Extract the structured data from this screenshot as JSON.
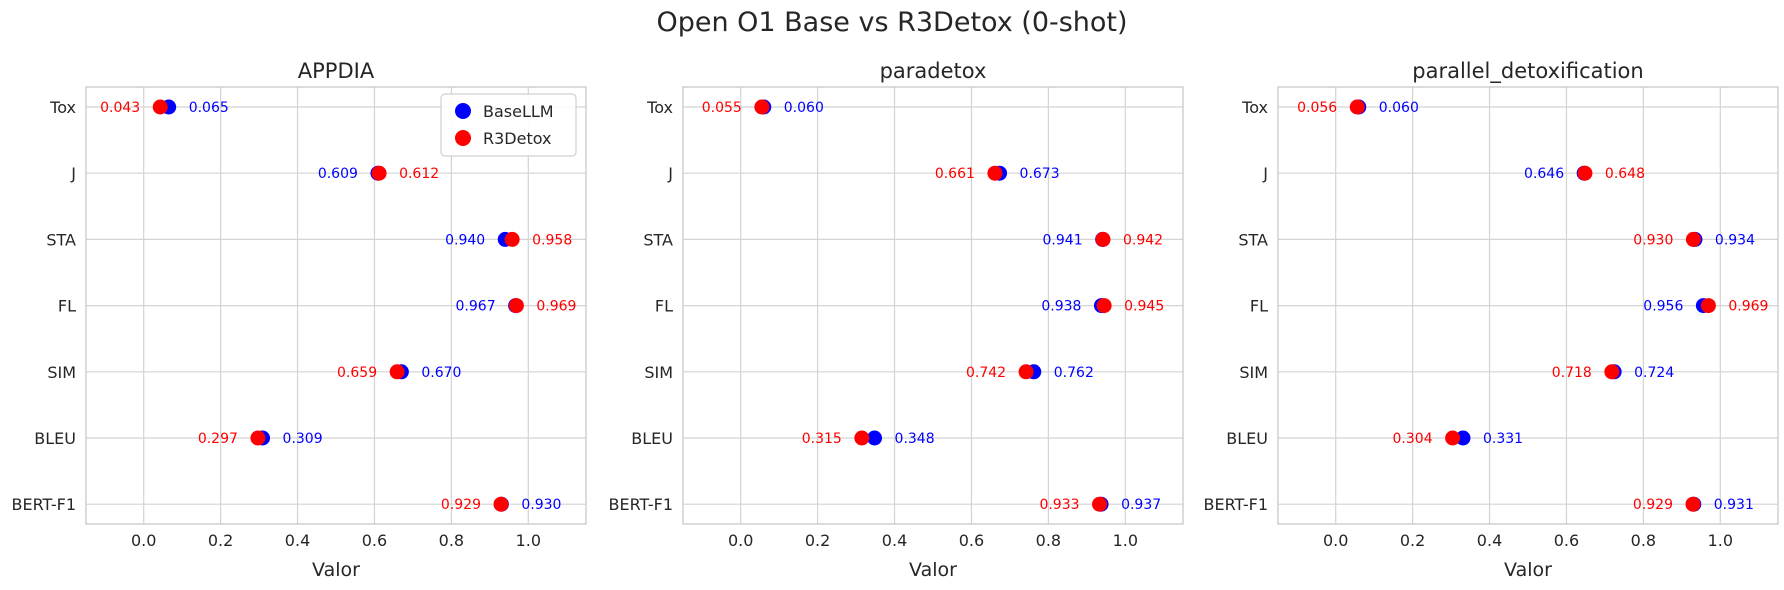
{
  "figure": {
    "title": "Open O1 Base vs R3Detox (0-shot)"
  },
  "colors": {
    "base": "#0000ff",
    "r3detox": "#ff0000",
    "grid": "#d4d4d4",
    "frame": "#c8c8c8"
  },
  "legend": {
    "placement": "upper right of first panel",
    "entries": [
      "BaseLLM",
      "R3Detox"
    ]
  },
  "chart_data": [
    {
      "type": "scatter",
      "title": "APPDIA",
      "xlabel": "Valor",
      "xlim": [
        -0.15,
        1.15
      ],
      "xticks": [
        "0.0",
        "0.2",
        "0.4",
        "0.6",
        "0.8",
        "1.0"
      ],
      "grid": true,
      "categories": [
        "Tox",
        "J",
        "STA",
        "FL",
        "SIM",
        "BLEU",
        "BERT-F1"
      ],
      "series": [
        {
          "name": "BaseLLM",
          "values": [
            0.065,
            0.609,
            0.94,
            0.967,
            0.67,
            0.309,
            0.93
          ]
        },
        {
          "name": "R3Detox",
          "values": [
            0.043,
            0.612,
            0.958,
            0.969,
            0.659,
            0.297,
            0.929
          ]
        }
      ]
    },
    {
      "type": "scatter",
      "title": "paradetox",
      "xlabel": "Valor",
      "xlim": [
        -0.15,
        1.15
      ],
      "xticks": [
        "0.0",
        "0.2",
        "0.4",
        "0.6",
        "0.8",
        "1.0"
      ],
      "grid": true,
      "categories": [
        "Tox",
        "J",
        "STA",
        "FL",
        "SIM",
        "BLEU",
        "BERT-F1"
      ],
      "series": [
        {
          "name": "BaseLLM",
          "values": [
            0.06,
            0.673,
            0.941,
            0.938,
            0.762,
            0.348,
            0.937
          ]
        },
        {
          "name": "R3Detox",
          "values": [
            0.055,
            0.661,
            0.942,
            0.945,
            0.742,
            0.315,
            0.933
          ]
        }
      ]
    },
    {
      "type": "scatter",
      "title": "parallel_detoxification",
      "xlabel": "Valor",
      "xlim": [
        -0.15,
        1.15
      ],
      "xticks": [
        "0.0",
        "0.2",
        "0.4",
        "0.6",
        "0.8",
        "1.0"
      ],
      "grid": true,
      "categories": [
        "Tox",
        "J",
        "STA",
        "FL",
        "SIM",
        "BLEU",
        "BERT-F1"
      ],
      "series": [
        {
          "name": "BaseLLM",
          "values": [
            0.06,
            0.646,
            0.934,
            0.956,
            0.724,
            0.331,
            0.931
          ]
        },
        {
          "name": "R3Detox",
          "values": [
            0.056,
            0.648,
            0.93,
            0.969,
            0.718,
            0.304,
            0.929
          ]
        }
      ]
    }
  ]
}
